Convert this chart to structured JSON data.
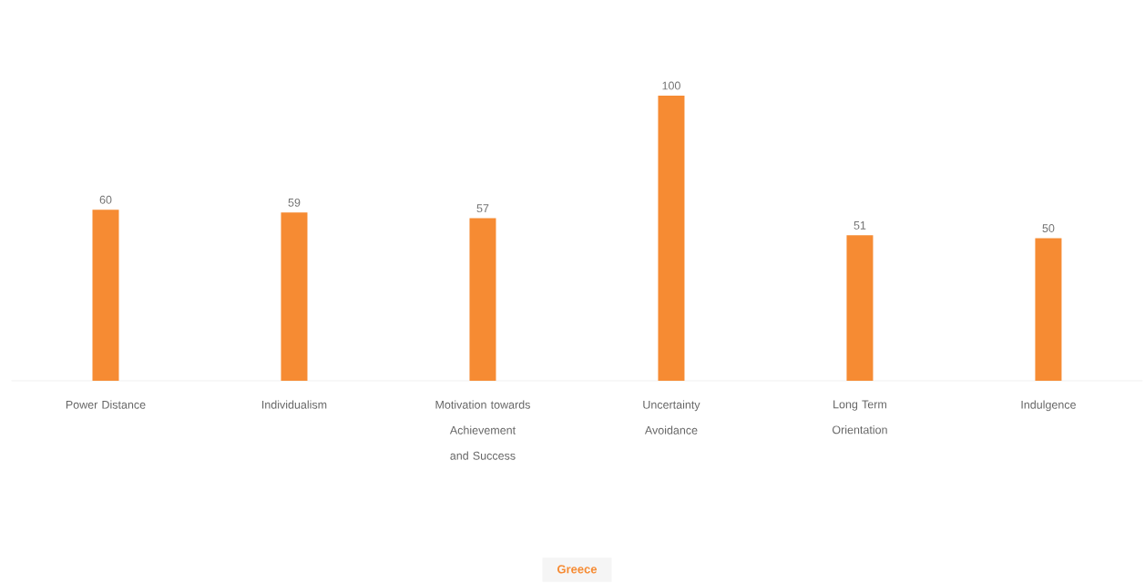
{
  "chart_data": {
    "type": "bar",
    "categories": [
      "Power Distance",
      "Individualism",
      "Motivation towards Achievement and Success",
      "Uncertainty Avoidance",
      "Long Term Orientation",
      "Indulgence"
    ],
    "series": [
      {
        "name": "Greece",
        "color": "#f68b33",
        "values": [
          60,
          59,
          57,
          100,
          51,
          50
        ]
      }
    ],
    "data_labels": true,
    "legend": "bottom"
  }
}
